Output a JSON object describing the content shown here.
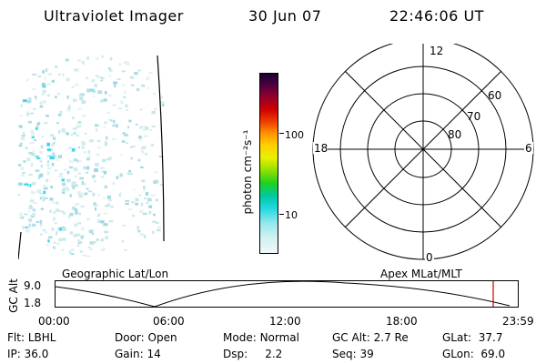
{
  "header": {
    "title": "Ultraviolet Imager",
    "date": "30 Jun 07",
    "time": "22:46:06 UT"
  },
  "colorbar": {
    "unit": "photon cm⁻²s⁻¹",
    "tick_100": "100",
    "tick_10": "10"
  },
  "polar": {
    "mlt_top": "12",
    "mlt_left": "18",
    "mlt_right": "6",
    "mlt_bottom": "0",
    "lat_60": "60",
    "lat_70": "70",
    "lat_80": "80"
  },
  "orbit": {
    "left_label": "Geographic Lat/Lon",
    "right_label": "Apex MLat/MLT",
    "ylabel": "GC Alt",
    "ytick_top": "9.0",
    "ytick_bottom": "1.8",
    "x_ticks": [
      "00:00",
      "06:00",
      "12:00",
      "18:00",
      "23:59"
    ],
    "marker_color": "#cc0000"
  },
  "status": {
    "filter_label": "Flt:",
    "filter_value": "LBHL",
    "door_label": "Door:",
    "door_value": "Open",
    "mode_label": "Mode:",
    "mode_value": "Normal",
    "gcalt_label": "GC Alt:",
    "gcalt_value": "2.7 Re",
    "glat_label": "GLat:",
    "glat_value": "37.7",
    "ip_label": "IP:",
    "ip_value": "36.0",
    "gain_label": "Gain:",
    "gain_value": "14",
    "dsp_label": "Dsp:",
    "dsp_value": "2.2",
    "seq_label": "Seq:",
    "seq_value": "39",
    "glon_label": "GLon:",
    "glon_value": "69.0"
  }
}
